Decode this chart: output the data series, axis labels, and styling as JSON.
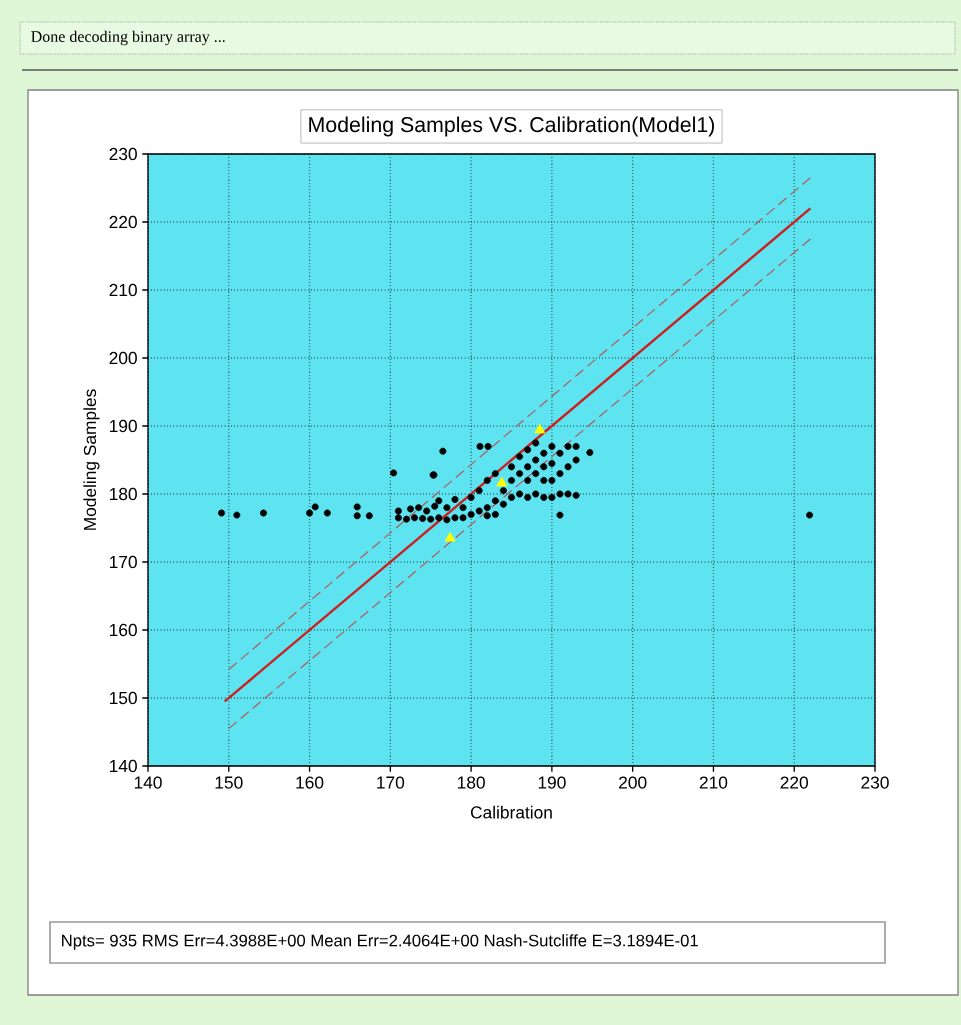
{
  "chart_data": {
    "type": "scatter",
    "title": "Modeling Samples VS. Calibration(Model1)",
    "xlabel": "Calibration",
    "ylabel": "Modeling Samples",
    "annotations": [
      "Done decoding binary array ...",
      "Npts= 935 RMS Err=4.3988E+00  Mean Err=2.4064E+00  Nash-Sutcliffe E=3.1894E-01"
    ],
    "xlim": [
      140,
      230
    ],
    "ylim": [
      140,
      230
    ],
    "xticks": [
      140,
      150,
      160,
      170,
      180,
      190,
      200,
      210,
      220,
      230
    ],
    "yticks": [
      140,
      150,
      160,
      170,
      180,
      190,
      200,
      210,
      220,
      230
    ],
    "grid": true,
    "series": [
      {
        "marker": "circle",
        "color": "#000000",
        "x": [
          149.1,
          151.0,
          154.3,
          160.0,
          160.7,
          162.2,
          165.9,
          165.9,
          167.4,
          170.4,
          175.3,
          176.5,
          181.1,
          182.1,
          194.7,
          175.4,
          191.0,
          221.9,
          171,
          171,
          172,
          172.5,
          173,
          173.5,
          174,
          174.5,
          175,
          175.5,
          176,
          176,
          177,
          177,
          178,
          178,
          179,
          179,
          180,
          180,
          181,
          181,
          182,
          182,
          183,
          183,
          184,
          184,
          185,
          185,
          185,
          186,
          186,
          186,
          187,
          187,
          187,
          187,
          188,
          188,
          188,
          188,
          189,
          189,
          189,
          189,
          190,
          190,
          190,
          190,
          191,
          191,
          191,
          192,
          192,
          192,
          193,
          193,
          193,
          182,
          183
        ],
        "values": [
          177.2,
          176.9,
          177.2,
          177.2,
          178.1,
          177.2,
          178.1,
          176.8,
          176.8,
          183.1,
          182.8,
          186.3,
          187.0,
          187.0,
          186.1,
          182.8,
          176.9,
          176.9,
          176.5,
          177.5,
          176.3,
          177.8,
          176.5,
          178,
          176.4,
          177.5,
          176.3,
          178.2,
          176.5,
          179,
          176.2,
          178,
          176.5,
          179.2,
          176.5,
          178,
          177,
          179.5,
          177.5,
          180.5,
          178,
          182,
          179,
          183,
          178.5,
          180.5,
          179.5,
          182,
          184,
          180,
          183,
          185.5,
          179.5,
          182,
          184,
          186.5,
          180,
          183,
          185,
          187.5,
          179.5,
          182,
          184,
          186,
          179.5,
          182,
          184.5,
          187,
          180,
          183,
          186,
          180,
          184,
          187,
          179.8,
          185,
          187,
          176.8,
          177
        ]
      },
      {
        "type": "line",
        "line_style": "solid",
        "color": "#cc2020",
        "x": [
          149.5,
          222
        ],
        "values": [
          149.5,
          222
        ]
      },
      {
        "type": "line",
        "line_style": "dashed",
        "color": "#b05a5a",
        "x": [
          150,
          222
        ],
        "values": [
          154.2,
          226.5
        ]
      },
      {
        "type": "line",
        "line_style": "dashed",
        "color": "#b05a5a",
        "x": [
          150,
          222
        ],
        "values": [
          145.5,
          217.5
        ]
      },
      {
        "marker": "triangle",
        "color": "#ffff00",
        "x": [
          188.5,
          183.8,
          177.4
        ],
        "values": [
          189.4,
          181.6,
          173.5
        ]
      }
    ]
  }
}
